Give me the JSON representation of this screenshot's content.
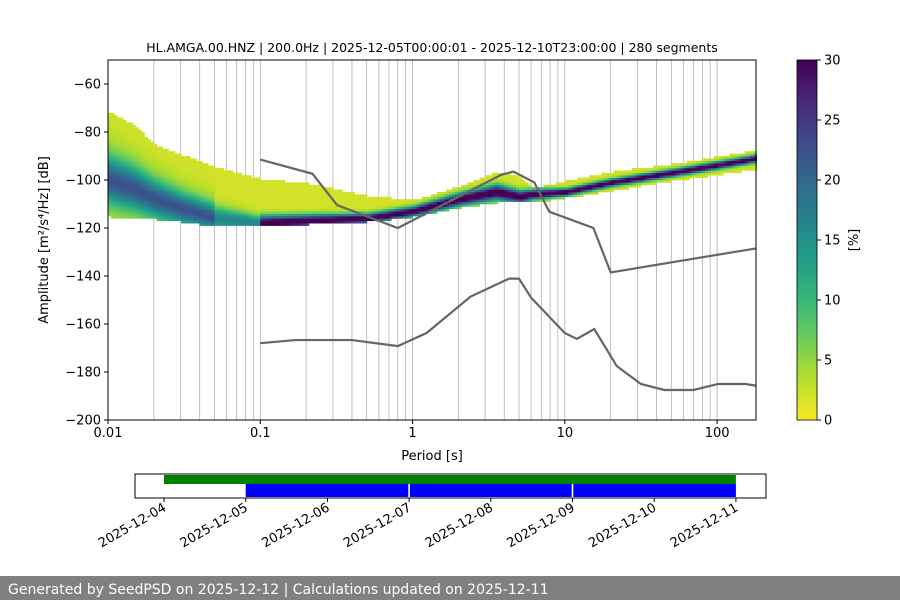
{
  "chart_data": {
    "type": "heatmap",
    "title": "HL.AMGA.00.HNZ | 200.0Hz | 2025-12-05T00:00:01 - 2025-12-10T23:00:00 | 280 segments",
    "xlabel": "Period [s]",
    "ylabel": "Amplitude [m²/s⁴/Hz] [dB]",
    "xscale": "log",
    "xlim": [
      0.01,
      180
    ],
    "ylim": [
      -200,
      -50
    ],
    "xticks": [
      {
        "v": 0.01,
        "l": "0.01"
      },
      {
        "v": 0.1,
        "l": "0.1"
      },
      {
        "v": 1,
        "l": "1"
      },
      {
        "v": 10,
        "l": "10"
      },
      {
        "v": 100,
        "l": "100"
      }
    ],
    "yticks": [
      {
        "v": -60,
        "l": "−60"
      },
      {
        "v": -80,
        "l": "−80"
      },
      {
        "v": -100,
        "l": "−100"
      },
      {
        "v": -120,
        "l": "−120"
      },
      {
        "v": -140,
        "l": "−140"
      },
      {
        "v": -160,
        "l": "−160"
      },
      {
        "v": -180,
        "l": "−180"
      },
      {
        "v": -200,
        "l": "−200"
      }
    ],
    "colorbar": {
      "label": "[%]",
      "range": [
        0,
        30
      ],
      "ticks": [
        {
          "v": 0,
          "l": "0"
        },
        {
          "v": 5,
          "l": "5"
        },
        {
          "v": 10,
          "l": "10"
        },
        {
          "v": 15,
          "l": "15"
        },
        {
          "v": 20,
          "l": "20"
        },
        {
          "v": 25,
          "l": "25"
        },
        {
          "v": 30,
          "l": "30"
        }
      ],
      "colormap": "viridis_r"
    },
    "psd_band": [
      [
        0.01,
        -72,
        -115,
        -100,
        9
      ],
      [
        0.015,
        -78,
        -116,
        -104,
        8
      ],
      [
        0.02,
        -86,
        -116,
        -108,
        7
      ],
      [
        0.03,
        -90,
        -117,
        -112,
        6
      ],
      [
        0.05,
        -95,
        -119,
        -116,
        5
      ],
      [
        0.1,
        -100,
        -119,
        -118,
        3
      ],
      [
        0.2,
        -102,
        -118,
        -117,
        2.5
      ],
      [
        0.5,
        -107,
        -117,
        -116,
        2
      ],
      [
        1,
        -109,
        -115,
        -113,
        2
      ],
      [
        2,
        -103,
        -111,
        -108,
        2.5
      ],
      [
        3.5,
        -97,
        -109,
        -105,
        3
      ],
      [
        5,
        -99,
        -109,
        -107,
        2.5
      ],
      [
        6,
        -104,
        -109,
        -106,
        2
      ],
      [
        10,
        -101,
        -107,
        -105,
        1.5
      ],
      [
        20,
        -97,
        -104,
        -101,
        1.5
      ],
      [
        50,
        -94,
        -100,
        -97,
        1.5
      ],
      [
        180,
        -88,
        -95,
        -91,
        1.5
      ]
    ],
    "psd_bump": [
      [
        15,
        -92,
        -96
      ],
      [
        20,
        -86,
        -95
      ],
      [
        30,
        -86,
        -94
      ],
      [
        50,
        -90,
        -97
      ],
      [
        70,
        -94,
        -98
      ]
    ],
    "nhnm": [
      [
        0.1,
        -91.5
      ],
      [
        0.22,
        -97.4
      ],
      [
        0.32,
        -110.5
      ],
      [
        0.8,
        -120
      ],
      [
        3.8,
        -97.9
      ],
      [
        4.6,
        -96.5
      ],
      [
        6.3,
        -101
      ],
      [
        7.9,
        -113.2
      ],
      [
        15.4,
        -120
      ],
      [
        20,
        -138.5
      ],
      [
        180,
        -128.5
      ]
    ],
    "nlnm": [
      [
        0.1,
        -168
      ],
      [
        0.17,
        -166.7
      ],
      [
        0.4,
        -166.7
      ],
      [
        0.8,
        -169.2
      ],
      [
        1.24,
        -163.7
      ],
      [
        2.4,
        -148.6
      ],
      [
        4.3,
        -141.1
      ],
      [
        5,
        -141.1
      ],
      [
        6,
        -149
      ],
      [
        10,
        -163.8
      ],
      [
        12,
        -166.2
      ],
      [
        15.6,
        -162.1
      ],
      [
        21.9,
        -177.5
      ],
      [
        31.6,
        -185
      ],
      [
        45,
        -187.5
      ],
      [
        70,
        -187.5
      ],
      [
        101,
        -185
      ],
      [
        154,
        -185
      ],
      [
        180,
        -185.7
      ]
    ]
  },
  "timeline": {
    "ticks": [
      "2025-12-04",
      "2025-12-05",
      "2025-12-06",
      "2025-12-07",
      "2025-12-08",
      "2025-12-09",
      "2025-12-10",
      "2025-12-11"
    ],
    "data_available": {
      "start_day": 0,
      "end_day": 7,
      "color": "#008000"
    },
    "psd_used": [
      {
        "start_day": 1,
        "end_day": 2.99
      },
      {
        "start_day": 3.01,
        "end_day": 4.99
      },
      {
        "start_day": 5.01,
        "end_day": 7
      }
    ],
    "psd_color": "#0000ff"
  },
  "footer": "Generated by SeedPSD on 2025-12-12 | Calculations updated on 2025-12-11"
}
